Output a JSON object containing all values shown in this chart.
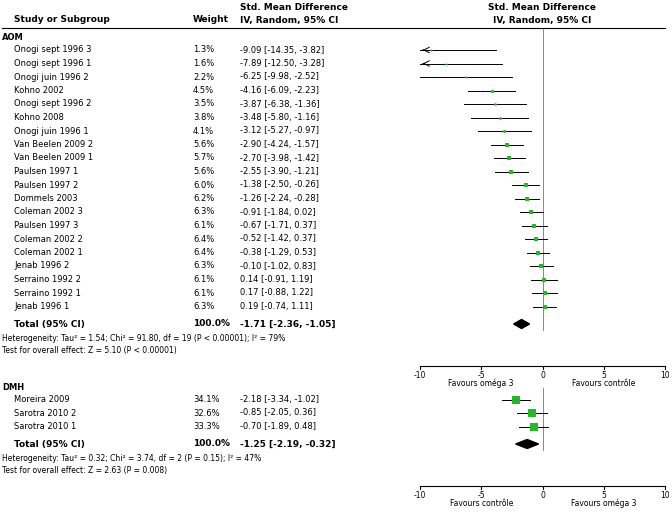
{
  "group1_label": "AOM",
  "group2_label": "DMH",
  "group1_studies": [
    {
      "name": "Onogi sept 1996 3",
      "weight": "1.3%",
      "mean": -9.09,
      "ci_low": -14.35,
      "ci_high": -3.82,
      "ci_text": "-9.09 [-14.35, -3.82]"
    },
    {
      "name": "Onogi sept 1996 1",
      "weight": "1.6%",
      "mean": -7.89,
      "ci_low": -12.5,
      "ci_high": -3.28,
      "ci_text": "-7.89 [-12.50, -3.28]"
    },
    {
      "name": "Onogi juin 1996 2",
      "weight": "2.2%",
      "mean": -6.25,
      "ci_low": -9.98,
      "ci_high": -2.52,
      "ci_text": "-6.25 [-9.98, -2.52]"
    },
    {
      "name": "Kohno 2002",
      "weight": "4.5%",
      "mean": -4.16,
      "ci_low": -6.09,
      "ci_high": -2.23,
      "ci_text": "-4.16 [-6.09, -2.23]"
    },
    {
      "name": "Onogi sept 1996 2",
      "weight": "3.5%",
      "mean": -3.87,
      "ci_low": -6.38,
      "ci_high": -1.36,
      "ci_text": "-3.87 [-6.38, -1.36]"
    },
    {
      "name": "Kohno 2008",
      "weight": "3.8%",
      "mean": -3.48,
      "ci_low": -5.8,
      "ci_high": -1.16,
      "ci_text": "-3.48 [-5.80, -1.16]"
    },
    {
      "name": "Onogi juin 1996 1",
      "weight": "4.1%",
      "mean": -3.12,
      "ci_low": -5.27,
      "ci_high": -0.97,
      "ci_text": "-3.12 [-5.27, -0.97]"
    },
    {
      "name": "Van Beelen 2009 2",
      "weight": "5.6%",
      "mean": -2.9,
      "ci_low": -4.24,
      "ci_high": -1.57,
      "ci_text": "-2.90 [-4.24, -1.57]"
    },
    {
      "name": "Van Beelen 2009 1",
      "weight": "5.7%",
      "mean": -2.7,
      "ci_low": -3.98,
      "ci_high": -1.42,
      "ci_text": "-2.70 [-3.98, -1.42]"
    },
    {
      "name": "Paulsen 1997 1",
      "weight": "5.6%",
      "mean": -2.55,
      "ci_low": -3.9,
      "ci_high": -1.21,
      "ci_text": "-2.55 [-3.90, -1.21]"
    },
    {
      "name": "Paulsen 1997 2",
      "weight": "6.0%",
      "mean": -1.38,
      "ci_low": -2.5,
      "ci_high": -0.26,
      "ci_text": "-1.38 [-2.50, -0.26]"
    },
    {
      "name": "Dommels 2003",
      "weight": "6.2%",
      "mean": -1.26,
      "ci_low": -2.24,
      "ci_high": -0.28,
      "ci_text": "-1.26 [-2.24, -0.28]"
    },
    {
      "name": "Coleman 2002 3",
      "weight": "6.3%",
      "mean": -0.91,
      "ci_low": -1.84,
      "ci_high": 0.02,
      "ci_text": "-0.91 [-1.84, 0.02]"
    },
    {
      "name": "Paulsen 1997 3",
      "weight": "6.1%",
      "mean": -0.67,
      "ci_low": -1.71,
      "ci_high": 0.37,
      "ci_text": "-0.67 [-1.71, 0.37]"
    },
    {
      "name": "Coleman 2002 2",
      "weight": "6.4%",
      "mean": -0.52,
      "ci_low": -1.42,
      "ci_high": 0.37,
      "ci_text": "-0.52 [-1.42, 0.37]"
    },
    {
      "name": "Coleman 2002 1",
      "weight": "6.4%",
      "mean": -0.38,
      "ci_low": -1.29,
      "ci_high": 0.53,
      "ci_text": "-0.38 [-1.29, 0.53]"
    },
    {
      "name": "Jenab 1996 2",
      "weight": "6.3%",
      "mean": -0.1,
      "ci_low": -1.02,
      "ci_high": 0.83,
      "ci_text": "-0.10 [-1.02, 0.83]"
    },
    {
      "name": "Serraino 1992 2",
      "weight": "6.1%",
      "mean": 0.14,
      "ci_low": -0.91,
      "ci_high": 1.19,
      "ci_text": "0.14 [-0.91, 1.19]"
    },
    {
      "name": "Serraino 1992 1",
      "weight": "6.1%",
      "mean": 0.17,
      "ci_low": -0.88,
      "ci_high": 1.22,
      "ci_text": "0.17 [-0.88, 1.22]"
    },
    {
      "name": "Jenab 1996 1",
      "weight": "6.3%",
      "mean": 0.19,
      "ci_low": -0.74,
      "ci_high": 1.11,
      "ci_text": "0.19 [-0.74, 1.11]"
    }
  ],
  "group1_total": {
    "weight": "100.0%",
    "mean": -1.71,
    "ci_low": -2.36,
    "ci_high": -1.05,
    "ci_text": "-1.71 [-2.36, -1.05]"
  },
  "group1_het": "Heterogeneity: Tau² = 1.54; Chi² = 91.80, df = 19 (P < 0.00001); I² = 79%",
  "group1_test": "Test for overall effect: Z = 5.10 (P < 0.00001)",
  "group2_studies": [
    {
      "name": "Moreira 2009",
      "weight": "34.1%",
      "mean": -2.18,
      "ci_low": -3.34,
      "ci_high": -1.02,
      "ci_text": "-2.18 [-3.34, -1.02]"
    },
    {
      "name": "Sarotra 2010 2",
      "weight": "32.6%",
      "mean": -0.85,
      "ci_low": -2.05,
      "ci_high": 0.36,
      "ci_text": "-0.85 [-2.05, 0.36]"
    },
    {
      "name": "Sarotra 2010 1",
      "weight": "33.3%",
      "mean": -0.7,
      "ci_low": -1.89,
      "ci_high": 0.48,
      "ci_text": "-0.70 [-1.89, 0.48]"
    }
  ],
  "group2_total": {
    "weight": "100.0%",
    "mean": -1.25,
    "ci_low": -2.19,
    "ci_high": -0.32,
    "ci_text": "-1.25 [-2.19, -0.32]"
  },
  "group2_het": "Heterogeneity: Tau² = 0.32; Chi² = 3.74, df = 2 (P = 0.15); I² = 47%",
  "group2_test": "Test for overall effect: Z = 2.63 (P = 0.008)",
  "axis1_label_left": "Favours oméga 3",
  "axis1_label_right": "Favours contrôle",
  "axis2_label_left": "Favours contrôle",
  "axis2_label_right": "Favours oméga 3",
  "xlim": [
    -10,
    10
  ],
  "xticks": [
    -10,
    -5,
    0,
    5,
    10
  ],
  "marker_color": "#22bb22",
  "diamond_color": "#000000",
  "line_color": "#000000",
  "gray_line_color": "#888888",
  "text_color": "#000000",
  "bg_color": "#ffffff"
}
